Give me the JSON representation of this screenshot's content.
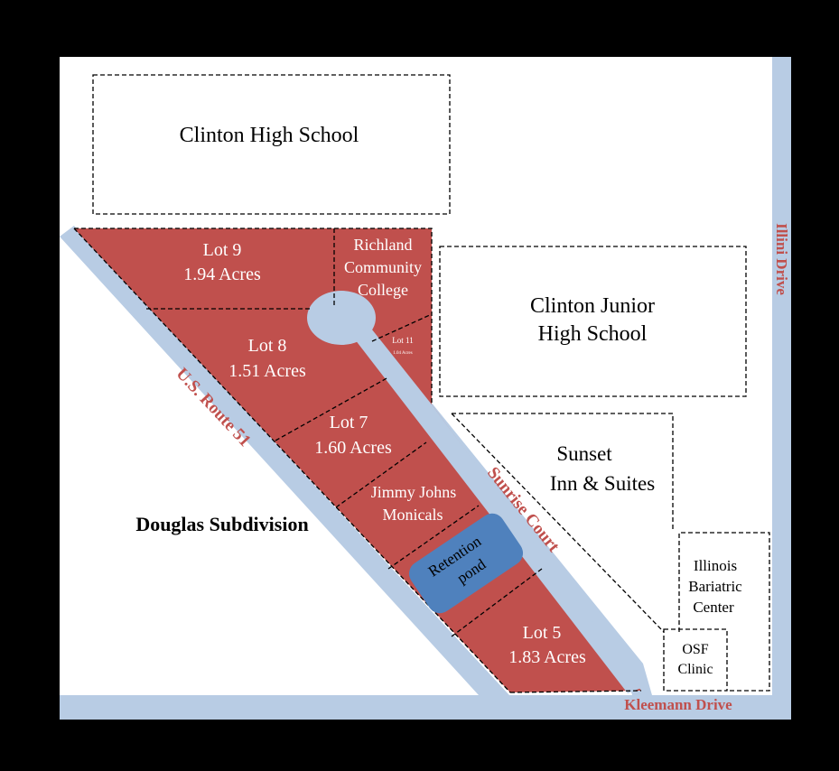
{
  "colors": {
    "frame": "#000000",
    "land": "#ffffff",
    "road": "#b8cce4",
    "lot": "#c0504d",
    "pond": "#4f81bd",
    "road_label": "#c0504d"
  },
  "buildings": {
    "high_school": "Clinton High School",
    "junior_high_line1": "Clinton Junior",
    "junior_high_line2": "High School",
    "sunset_line1": "Sunset",
    "sunset_line2": "Inn & Suites",
    "bariatric_line1": "Illinois",
    "bariatric_line2": "Bariatric",
    "bariatric_line3": "Center",
    "osf_line1": "OSF",
    "osf_line2": "Clinic"
  },
  "lots": {
    "lot9_name": "Lot 9",
    "lot9_area": "1.94 Acres",
    "richland_line1": "Richland",
    "richland_line2": "Community",
    "richland_line3": "College",
    "lot11_name": "Lot 11",
    "lot11_area": "1.04 Acres",
    "lot8_name": "Lot 8",
    "lot8_area": "1.51 Acres",
    "lot7_name": "Lot 7",
    "lot7_area": "1.60 Acres",
    "jimmy_line1": "Jimmy Johns",
    "jimmy_line2": "Monicals",
    "pond_line1": "Retention",
    "pond_line2": "pond",
    "lot5_name": "Lot 5",
    "lot5_area": "1.83 Acres"
  },
  "areas": {
    "douglas": "Douglas Subdivision"
  },
  "roads": {
    "route51": "U.S. Route 51",
    "sunrise": "Sunrise Court",
    "illini": "Illini Drive",
    "kleemann": "Kleemann Drive"
  }
}
